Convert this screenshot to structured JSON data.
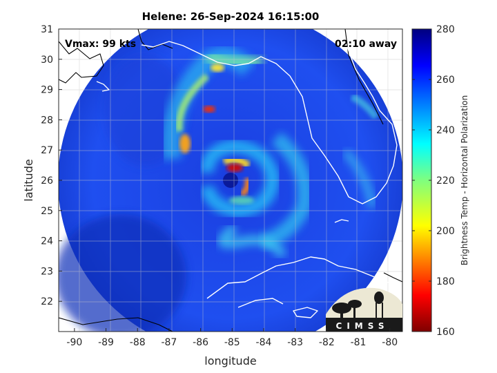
{
  "chart_data": {
    "type": "heatmap",
    "title": "Helene: 26-Sep-2024 16:15:00",
    "xlabel": "longitude",
    "ylabel": "latitude",
    "xlim": [
      -90.5,
      -79.6
    ],
    "ylim": [
      21,
      31
    ],
    "xticks": [
      "-90",
      "-89",
      "-88",
      "-87",
      "-86",
      "-85",
      "-84",
      "-83",
      "-82",
      "-81",
      "-80"
    ],
    "yticks": [
      "22",
      "23",
      "24",
      "25",
      "26",
      "27",
      "28",
      "29",
      "30",
      "31"
    ],
    "grid": true,
    "annotations": {
      "vmax": "Vmax: 99 kts",
      "time_away": "02:10 away"
    },
    "storm_center": {
      "lon": -85.1,
      "lat": 26.0
    },
    "colorbar": {
      "label": "Brightness Temp - Horizontal Polarization",
      "range": [
        160,
        280
      ],
      "ticks": [
        "160",
        "180",
        "200",
        "220",
        "240",
        "260",
        "280"
      ],
      "colormap": "jet"
    },
    "logo_text": "CIMSS"
  }
}
